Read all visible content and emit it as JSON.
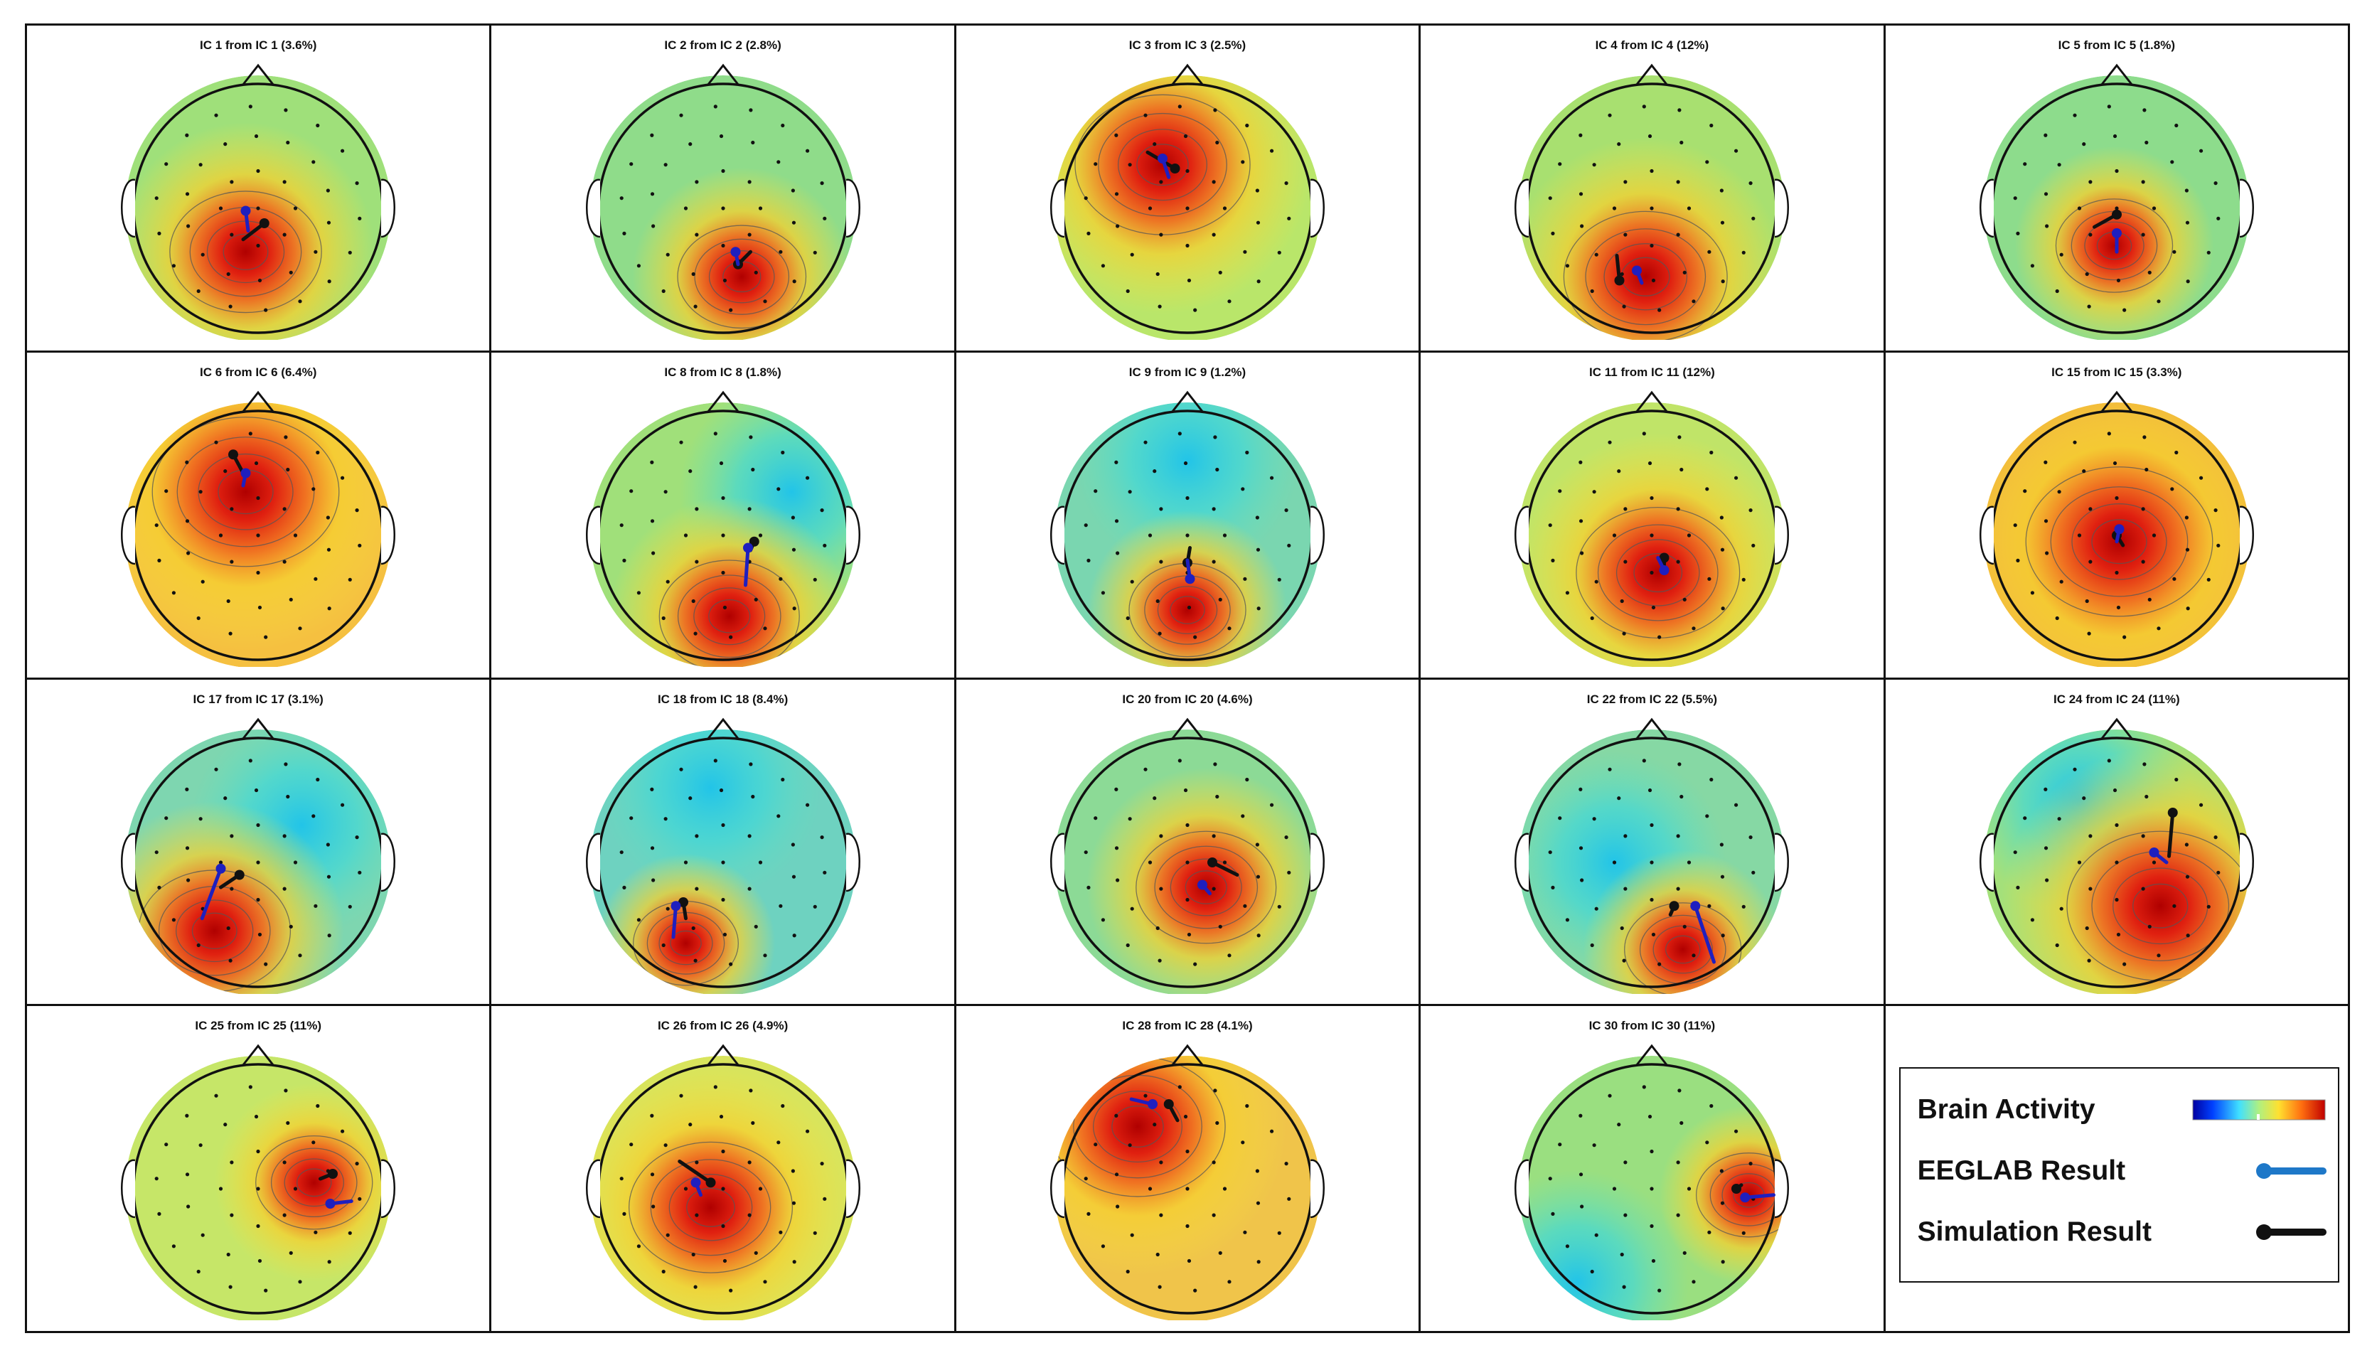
{
  "colors": {
    "eeglab_dipole": "#1f1fbf",
    "simulation_dipole": "#111111",
    "legend_eeglab_swatch": "#1e78c8",
    "contour": "#555555"
  },
  "maps": [
    {
      "title": "IC 1 from IC 1 (3.6%)",
      "rel_variance": 3.6,
      "peak_region": "central-posterior",
      "peak_sign": "positive"
    },
    {
      "title": "IC 2 from IC 2 (2.8%)",
      "rel_variance": 2.8,
      "peak_region": "right-posterior",
      "peak_sign": "positive"
    },
    {
      "title": "IC 3 from IC 3 (2.5%)",
      "rel_variance": 2.5,
      "peak_region": "left-frontal",
      "peak_sign": "positive"
    },
    {
      "title": "IC 4 from IC 4 (12%)",
      "rel_variance": 12,
      "peak_region": "occipital",
      "peak_sign": "positive"
    },
    {
      "title": "IC 5 from IC 5 (1.8%)",
      "rel_variance": 1.8,
      "peak_region": "parietal-midline",
      "peak_sign": "positive"
    },
    {
      "title": "IC 6 from IC 6 (6.4%)",
      "rel_variance": 6.4,
      "peak_region": "frontal",
      "peak_sign": "positive"
    },
    {
      "title": "IC 8 from IC 8 (1.8%)",
      "rel_variance": 1.8,
      "peak_region": "occipital",
      "peak_sign": "positive"
    },
    {
      "title": "IC 9 from IC 9 (1.2%)",
      "rel_variance": 1.2,
      "peak_region": "occipital-midline",
      "peak_sign": "positive"
    },
    {
      "title": "IC 11 from IC 11 (12%)",
      "rel_variance": 12,
      "peak_region": "right-parietal",
      "peak_sign": "positive"
    },
    {
      "title": "IC 15 from IC 15 (3.3%)",
      "rel_variance": 3.3,
      "peak_region": "central",
      "peak_sign": "positive"
    },
    {
      "title": "IC 17 from IC 17 (3.1%)",
      "rel_variance": 3.1,
      "peak_region": "left-posterior",
      "peak_sign": "positive"
    },
    {
      "title": "IC 18 from IC 18 (8.4%)",
      "rel_variance": 8.4,
      "peak_region": "left-occipital",
      "peak_sign": "positive"
    },
    {
      "title": "IC 20 from IC 20 (4.6%)",
      "rel_variance": 4.6,
      "peak_region": "right-central",
      "peak_sign": "positive"
    },
    {
      "title": "IC 22 from IC 22 (5.5%)",
      "rel_variance": 5.5,
      "peak_region": "right-occipital",
      "peak_sign": "positive"
    },
    {
      "title": "IC 24 from IC 24 (11%)",
      "rel_variance": 11,
      "peak_region": "right-temporal",
      "peak_sign": "positive"
    },
    {
      "title": "IC 25 from IC 25 (11%)",
      "rel_variance": 11,
      "peak_region": "right-temporal",
      "peak_sign": "positive"
    },
    {
      "title": "IC 26 from IC 26 (4.9%)",
      "rel_variance": 4.9,
      "peak_region": "left-central",
      "peak_sign": "positive"
    },
    {
      "title": "IC 28 from IC 28 (4.1%)",
      "rel_variance": 4.1,
      "peak_region": "left-frontal",
      "peak_sign": "positive"
    },
    {
      "title": "IC 30 from IC 30 (11%)",
      "rel_variance": 11,
      "peak_region": "right-temporal-edge",
      "peak_sign": "positive"
    }
  ],
  "legend": {
    "brain_activity_label": "Brain Activity",
    "eeglab_label": "EEGLAB Result",
    "simulation_label": "Simulation Result",
    "colormap": "jet"
  }
}
